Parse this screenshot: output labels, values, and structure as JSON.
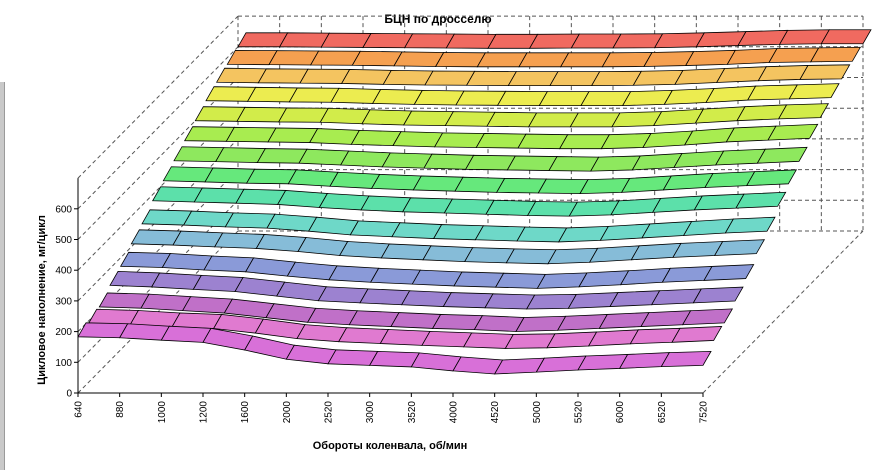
{
  "chart_data": {
    "type": "surface",
    "title": "БЦН по дросселю",
    "xlabel": "Обороты коленвала, об/мин",
    "ylabel": "Цикловое наполнение, мг/цикл",
    "x_ticks": [
      "640",
      "880",
      "1000",
      "1200",
      "1600",
      "2000",
      "2520",
      "3000",
      "3520",
      "4000",
      "4520",
      "5000",
      "5520",
      "6000",
      "6520",
      "7520"
    ],
    "y_ticks": [
      "0",
      "100",
      "200",
      "300",
      "400",
      "500",
      "600"
    ],
    "zlim": [
      0,
      700
    ],
    "grid": true,
    "series_colors": [
      "#d870d8",
      "#e07ad0",
      "#c070c8",
      "#9c82d0",
      "#8a9ad8",
      "#86bcd8",
      "#6ed8c8",
      "#5ce0aa",
      "#66e87c",
      "#8ee85e",
      "#a8ec50",
      "#d2ec4a",
      "#ecec50",
      "#f4c460",
      "#f5a050",
      "#f06a60"
    ],
    "series_values": [
      [
        183,
        180,
        172,
        165,
        140,
        110,
        95,
        90,
        85,
        72,
        62,
        68,
        75,
        80,
        86,
        90
      ],
      [
        192,
        188,
        180,
        175,
        160,
        142,
        132,
        126,
        120,
        115,
        110,
        112,
        118,
        125,
        130,
        136
      ],
      [
        210,
        206,
        198,
        190,
        175,
        160,
        152,
        146,
        140,
        136,
        130,
        134,
        140,
        146,
        152,
        158
      ],
      [
        245,
        240,
        232,
        225,
        210,
        195,
        188,
        182,
        176,
        172,
        168,
        170,
        176,
        182,
        188,
        194
      ],
      [
        272,
        268,
        260,
        254,
        240,
        228,
        220,
        214,
        208,
        204,
        200,
        205,
        212,
        220,
        226,
        232
      ],
      [
        310,
        306,
        300,
        295,
        285,
        272,
        264,
        258,
        252,
        248,
        245,
        250,
        258,
        266,
        272,
        278
      ],
      [
        340,
        336,
        330,
        326,
        316,
        304,
        298,
        292,
        288,
        284,
        281,
        286,
        294,
        302,
        310,
        316
      ],
      [
        380,
        376,
        372,
        368,
        358,
        350,
        344,
        340,
        336,
        332,
        330,
        334,
        342,
        350,
        356,
        362
      ],
      [
        410,
        406,
        402,
        400,
        392,
        385,
        380,
        376,
        372,
        370,
        368,
        372,
        380,
        388,
        394,
        400
      ],
      [
        440,
        437,
        434,
        432,
        426,
        420,
        416,
        412,
        410,
        408,
        406,
        410,
        418,
        426,
        432,
        438
      ],
      [
        470,
        468,
        466,
        464,
        458,
        454,
        450,
        448,
        446,
        444,
        444,
        448,
        456,
        466,
        472,
        478
      ],
      [
        500,
        498,
        496,
        495,
        490,
        486,
        484,
        482,
        480,
        480,
        480,
        484,
        492,
        500,
        506,
        510
      ],
      [
        530,
        528,
        526,
        525,
        521,
        518,
        516,
        515,
        514,
        514,
        514,
        518,
        524,
        532,
        536,
        540
      ],
      [
        555,
        553,
        552,
        551,
        548,
        546,
        545,
        544,
        544,
        544,
        545,
        548,
        554,
        560,
        564,
        566
      ],
      [
        578,
        577,
        576,
        575,
        573,
        571,
        570,
        570,
        570,
        570,
        571,
        574,
        578,
        584,
        586,
        588
      ],
      [
        600,
        600,
        599,
        598,
        597,
        596,
        595,
        595,
        596,
        596,
        597,
        600,
        604,
        608,
        610,
        610
      ]
    ]
  }
}
